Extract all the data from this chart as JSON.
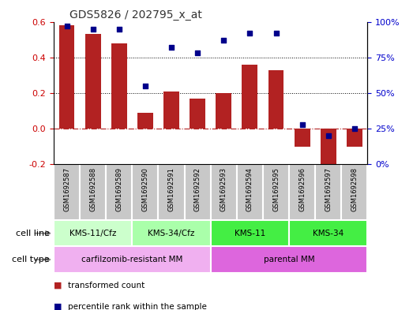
{
  "title": "GDS5826 / 202795_x_at",
  "samples": [
    "GSM1692587",
    "GSM1692588",
    "GSM1692589",
    "GSM1692590",
    "GSM1692591",
    "GSM1692592",
    "GSM1692593",
    "GSM1692594",
    "GSM1692595",
    "GSM1692596",
    "GSM1692597",
    "GSM1692598"
  ],
  "transformed_count": [
    0.58,
    0.53,
    0.48,
    0.09,
    0.21,
    0.17,
    0.2,
    0.36,
    0.33,
    -0.1,
    -0.23,
    -0.1
  ],
  "percentile_rank": [
    97,
    95,
    95,
    55,
    82,
    78,
    87,
    92,
    92,
    28,
    20,
    25
  ],
  "bar_color": "#b22222",
  "dot_color": "#00008b",
  "left_ylim": [
    -0.2,
    0.6
  ],
  "right_ylim": [
    0,
    100
  ],
  "left_yticks": [
    -0.2,
    0.0,
    0.2,
    0.4,
    0.6
  ],
  "right_yticks": [
    0,
    25,
    50,
    75,
    100
  ],
  "right_yticklabels": [
    "0%",
    "25%",
    "50%",
    "75%",
    "100%"
  ],
  "hline_y": 0.0,
  "hline_color": "#b22222",
  "dotted_lines": [
    0.2,
    0.4
  ],
  "cell_line_groups": [
    {
      "label": "KMS-11/Cfz",
      "start": 0,
      "end": 3,
      "color": "#ccffcc"
    },
    {
      "label": "KMS-34/Cfz",
      "start": 3,
      "end": 6,
      "color": "#aaffaa"
    },
    {
      "label": "KMS-11",
      "start": 6,
      "end": 9,
      "color": "#44ee44"
    },
    {
      "label": "KMS-34",
      "start": 9,
      "end": 12,
      "color": "#44ee44"
    }
  ],
  "cell_type_groups": [
    {
      "label": "carfilzomib-resistant MM",
      "start": 0,
      "end": 6,
      "color": "#f0b0f0"
    },
    {
      "label": "parental MM",
      "start": 6,
      "end": 12,
      "color": "#dd66dd"
    }
  ],
  "cell_line_label": "cell line",
  "cell_type_label": "cell type",
  "legend_items": [
    "transformed count",
    "percentile rank within the sample"
  ],
  "legend_colors": [
    "#b22222",
    "#00008b"
  ],
  "bar_width": 0.6,
  "sample_bg_color": "#c8c8c8",
  "tick_label_color_left": "#cc0000",
  "tick_label_color_right": "#0000cc",
  "arrow_color": "#888888"
}
